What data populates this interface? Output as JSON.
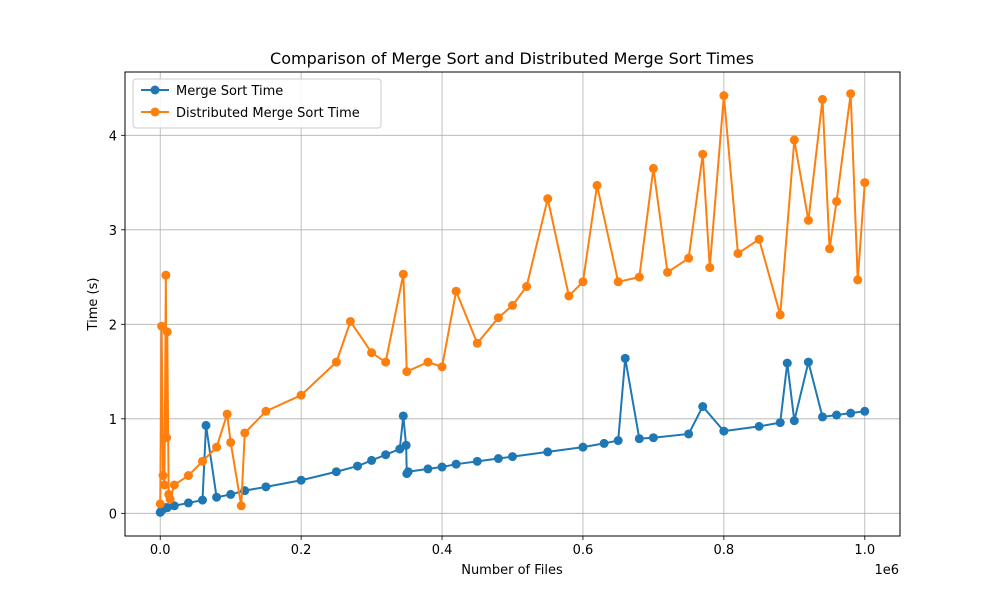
{
  "chart_data": {
    "type": "line",
    "title": "Comparison of Merge Sort and Distributed Merge Sort Times",
    "xlabel": "Number of Files",
    "ylabel": "Time (s)",
    "x_offset_text": "1e6",
    "xlim": [
      -50000,
      1050000
    ],
    "ylim": [
      -0.24,
      4.67
    ],
    "x_ticks": [
      0,
      200000,
      400000,
      600000,
      800000,
      1000000
    ],
    "x_tick_labels": [
      "0.0",
      "0.2",
      "0.4",
      "0.6",
      "0.8",
      "1.0"
    ],
    "y_ticks": [
      0,
      1,
      2,
      3,
      4
    ],
    "y_tick_labels": [
      "0",
      "1",
      "2",
      "3",
      "4"
    ],
    "grid": true,
    "legend_position": "top-left",
    "colors": {
      "merge": "#1f77b4",
      "distributed": "#ff7f0e"
    },
    "series": [
      {
        "name": "Merge Sort Time",
        "color": "#1f77b4",
        "x": [
          0,
          2000,
          5000,
          8000,
          10000,
          20000,
          40000,
          60000,
          65000,
          80000,
          100000,
          120000,
          150000,
          200000,
          250000,
          280000,
          300000,
          320000,
          340000,
          345000,
          349000,
          350000,
          352000,
          380000,
          400000,
          420000,
          450000,
          480000,
          500000,
          550000,
          600000,
          630000,
          650000,
          660000,
          680000,
          700000,
          750000,
          770000,
          800000,
          850000,
          880000,
          890000,
          900000,
          920000,
          940000,
          960000,
          980000,
          1000000
        ],
        "y": [
          0.01,
          0.03,
          0.05,
          0.06,
          0.06,
          0.08,
          0.11,
          0.14,
          0.93,
          0.17,
          0.2,
          0.24,
          0.28,
          0.35,
          0.44,
          0.5,
          0.56,
          0.62,
          0.68,
          1.03,
          0.72,
          0.42,
          0.44,
          0.47,
          0.49,
          0.52,
          0.55,
          0.58,
          0.6,
          0.65,
          0.7,
          0.74,
          0.77,
          1.64,
          0.79,
          0.8,
          0.84,
          1.13,
          0.87,
          0.92,
          0.96,
          1.59,
          0.98,
          1.6,
          1.02,
          1.04,
          1.06,
          1.08
        ]
      },
      {
        "name": "Distributed Merge Sort Time",
        "color": "#ff7f0e",
        "x": [
          0,
          2000,
          4000,
          6000,
          8000,
          9000,
          10000,
          12000,
          14000,
          20000,
          40000,
          60000,
          80000,
          95000,
          100000,
          115000,
          120000,
          150000,
          200000,
          250000,
          270000,
          300000,
          320000,
          345000,
          350000,
          380000,
          400000,
          420000,
          450000,
          480000,
          500000,
          520000,
          550000,
          580000,
          600000,
          620000,
          650000,
          680000,
          700000,
          720000,
          750000,
          770000,
          780000,
          800000,
          820000,
          850000,
          880000,
          900000,
          920000,
          940000,
          950000,
          960000,
          980000,
          990000,
          1000000
        ],
        "y": [
          0.1,
          1.98,
          0.4,
          0.3,
          2.52,
          0.8,
          1.92,
          0.2,
          0.15,
          0.3,
          0.4,
          0.55,
          0.7,
          1.05,
          0.75,
          0.08,
          0.85,
          1.08,
          1.25,
          1.6,
          2.03,
          1.7,
          1.6,
          2.53,
          1.5,
          1.6,
          1.55,
          2.35,
          1.8,
          2.07,
          2.2,
          2.4,
          3.33,
          2.3,
          2.45,
          3.47,
          2.45,
          2.5,
          3.65,
          2.55,
          2.7,
          3.8,
          2.6,
          4.42,
          2.75,
          2.9,
          2.1,
          3.95,
          3.1,
          4.38,
          2.8,
          3.3,
          4.44,
          2.47,
          3.5
        ]
      }
    ]
  }
}
